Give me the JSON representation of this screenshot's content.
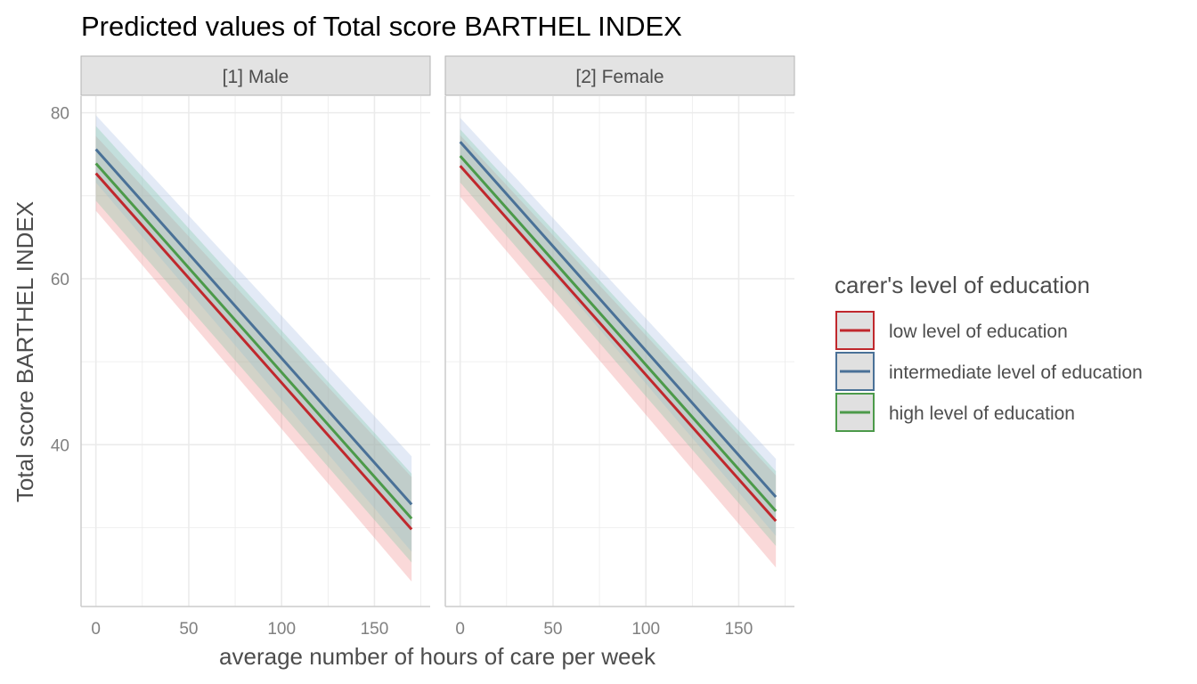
{
  "chart_data": {
    "type": "line",
    "title": "Predicted values of Total score BARTHEL INDEX",
    "xlabel": "average number of hours of care per week",
    "ylabel": "Total score BARTHEL INDEX",
    "xlim": [
      -8,
      180
    ],
    "ylim": [
      20.5,
      82
    ],
    "x_ticks": [
      0,
      50,
      100,
      150
    ],
    "y_ticks": [
      40,
      60,
      80
    ],
    "grid": true,
    "colors": {
      "low": "#c0282d",
      "intermediate": "#4a7197",
      "high": "#4c9a4a",
      "band_low": "#f08888",
      "band_intermediate": "#a9bfe3",
      "band_high": "#7ec6a5",
      "grid": "#ebebeb",
      "strip_fill": "#e3e3e3",
      "strip_border": "#b3b3b3",
      "axis_line": "#cccccc"
    },
    "legend": {
      "title": "carer's level of education",
      "placement": "right",
      "entries": [
        {
          "label": "low level of education",
          "key": "low"
        },
        {
          "label": "intermediate level of education",
          "key": "intermediate"
        },
        {
          "label": "high level of education",
          "key": "high"
        }
      ]
    },
    "panels": [
      {
        "label": "[1] Male",
        "series": [
          {
            "name": "low level of education",
            "key": "low",
            "x": [
              0,
              170
            ],
            "y": [
              72.7,
              29.8
            ],
            "lower": [
              68.2,
              23.5
            ],
            "upper": [
              77.2,
              36.1
            ]
          },
          {
            "name": "intermediate level of education",
            "key": "intermediate",
            "x": [
              0,
              170
            ],
            "y": [
              75.6,
              32.8
            ],
            "lower": [
              71.6,
              27.1
            ],
            "upper": [
              79.7,
              38.6
            ]
          },
          {
            "name": "high level of education",
            "key": "high",
            "x": [
              0,
              170
            ],
            "y": [
              73.9,
              31.1
            ],
            "lower": [
              69.4,
              25.8
            ],
            "upper": [
              78.4,
              36.5
            ]
          }
        ]
      },
      {
        "label": "[2] Female",
        "series": [
          {
            "name": "low level of education",
            "key": "low",
            "x": [
              0,
              170
            ],
            "y": [
              73.6,
              30.8
            ],
            "lower": [
              69.9,
              25.2
            ],
            "upper": [
              77.3,
              36.3
            ]
          },
          {
            "name": "intermediate level of education",
            "key": "intermediate",
            "x": [
              0,
              170
            ],
            "y": [
              76.5,
              33.7
            ],
            "lower": [
              73.6,
              29.0
            ],
            "upper": [
              79.4,
              38.3
            ]
          },
          {
            "name": "high level of education",
            "key": "high",
            "x": [
              0,
              170
            ],
            "y": [
              74.8,
              32.0
            ],
            "lower": [
              71.6,
              27.8
            ],
            "upper": [
              78.0,
              36.8
            ]
          }
        ]
      }
    ]
  }
}
